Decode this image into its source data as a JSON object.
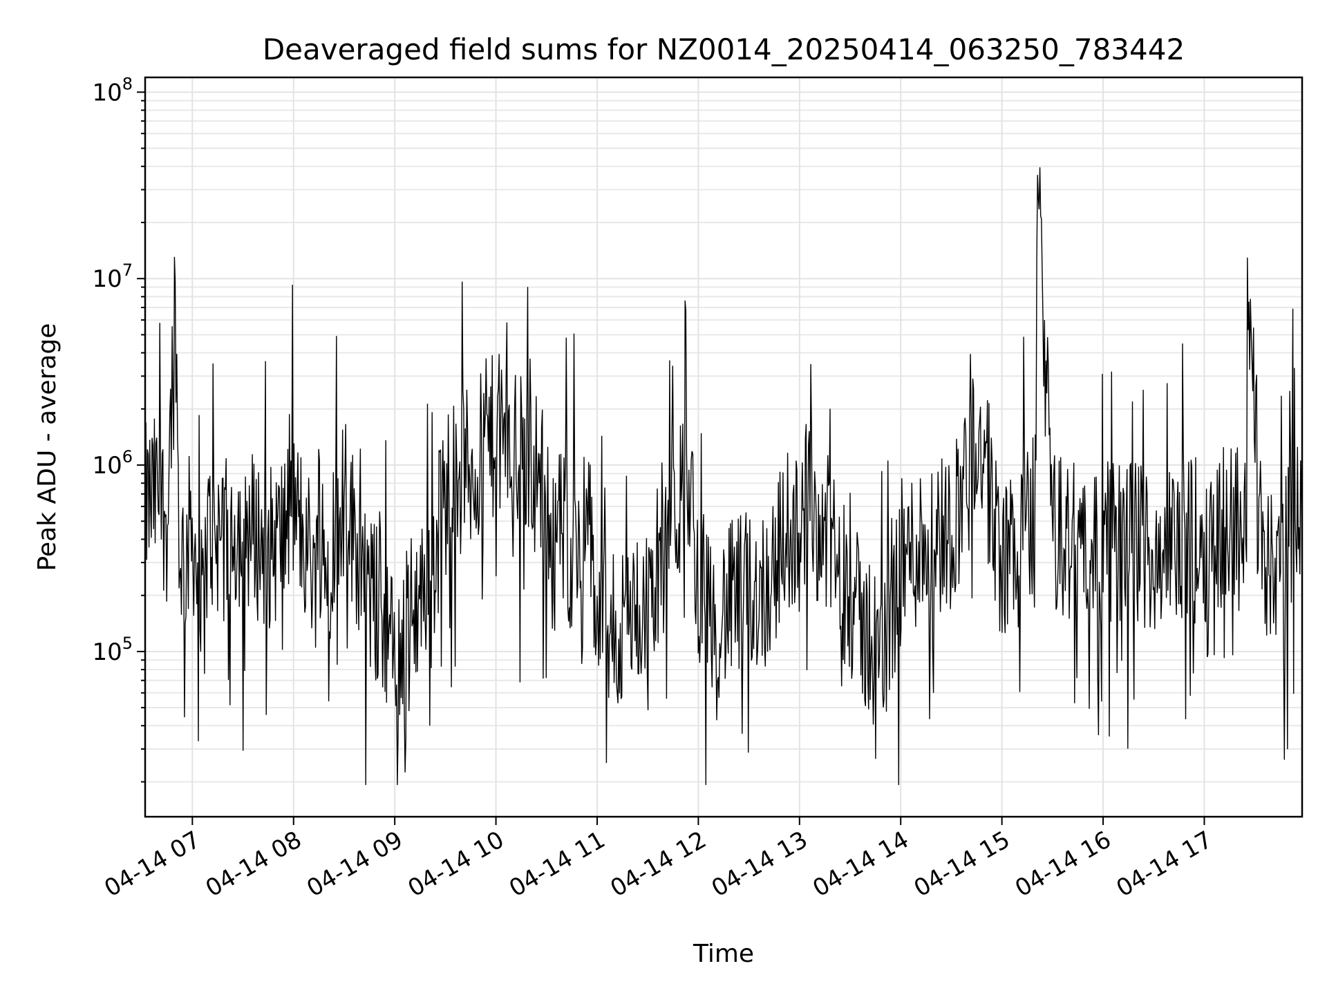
{
  "chart_data": {
    "type": "line",
    "title": "Deaveraged field sums for NZ0014_20250414_063250_783442",
    "xlabel": "Time",
    "ylabel": "Peak ADU - average",
    "yscale": "log",
    "grid": true,
    "legend": "none",
    "xlim": [
      "04-14 06:32",
      "04-14 17:58"
    ],
    "ylim": [
      13000,
      120000000
    ],
    "x_ticks": [
      "04-14 07",
      "04-14 08",
      "04-14 09",
      "04-14 10",
      "04-14 11",
      "04-14 12",
      "04-14 13",
      "04-14 14",
      "04-14 15",
      "04-14 16",
      "04-14 17"
    ],
    "y_ticks": [
      {
        "value": 100000,
        "base": "10",
        "exp": "5"
      },
      {
        "value": 1000000,
        "base": "10",
        "exp": "6"
      },
      {
        "value": 10000000,
        "base": "10",
        "exp": "7"
      },
      {
        "value": 100000000,
        "base": "10",
        "exp": "8"
      }
    ],
    "line_color": "#000000",
    "series": [
      {
        "x": [
          "04-14 06:32",
          "04-14 06:40",
          "04-14 06:45",
          "04-14 06:50",
          "04-14 06:52",
          "04-14 06:55",
          "04-14 07:00",
          "04-14 07:05",
          "04-14 07:10",
          "04-14 07:20",
          "04-14 07:30",
          "04-14 07:45",
          "04-14 07:55",
          "04-14 08:00",
          "04-14 08:15",
          "04-14 08:30",
          "04-14 08:45",
          "04-14 08:55",
          "04-14 09:00",
          "04-14 09:05",
          "04-14 09:15",
          "04-14 09:25",
          "04-14 09:35",
          "04-14 09:45",
          "04-14 10:00",
          "04-14 10:15",
          "04-14 10:25",
          "04-14 10:35",
          "04-14 10:45",
          "04-14 10:55",
          "04-14 11:00",
          "04-14 11:10",
          "04-14 11:20",
          "04-14 11:30",
          "04-14 11:45",
          "04-14 11:55",
          "04-14 12:00",
          "04-14 12:10",
          "04-14 12:25",
          "04-14 12:40",
          "04-14 12:55",
          "04-14 13:05",
          "04-14 13:20",
          "04-14 13:35",
          "04-14 13:50",
          "04-14 14:00",
          "04-14 14:15",
          "04-14 14:30",
          "04-14 14:45",
          "04-14 14:55",
          "04-14 15:00",
          "04-14 15:10",
          "04-14 15:20",
          "04-14 15:21",
          "04-14 15:30",
          "04-14 15:45",
          "04-14 16:00",
          "04-14 16:15",
          "04-14 16:30",
          "04-14 16:45",
          "04-14 17:00",
          "04-14 17:15",
          "04-14 17:25",
          "04-14 17:26",
          "04-14 17:35",
          "04-14 17:45",
          "04-14 17:58"
        ],
        "y": [
          600000,
          700000,
          500000,
          9600000,
          400000,
          300000,
          500000,
          150000,
          450000,
          400000,
          500000,
          350000,
          450000,
          600000,
          250000,
          700000,
          200000,
          150000,
          80000,
          120000,
          200000,
          350000,
          1200000,
          900000,
          1500000,
          1100000,
          900000,
          500000,
          350000,
          500000,
          150000,
          120000,
          150000,
          200000,
          600000,
          700000,
          250000,
          150000,
          200000,
          220000,
          500000,
          650000,
          350000,
          150000,
          90000,
          300000,
          400000,
          450000,
          1500000,
          600000,
          300000,
          400000,
          550000,
          36000000,
          450000,
          350000,
          380000,
          400000,
          350000,
          380000,
          400000,
          500000,
          600000,
          5300000,
          350000,
          300000,
          700000
        ]
      }
    ]
  }
}
